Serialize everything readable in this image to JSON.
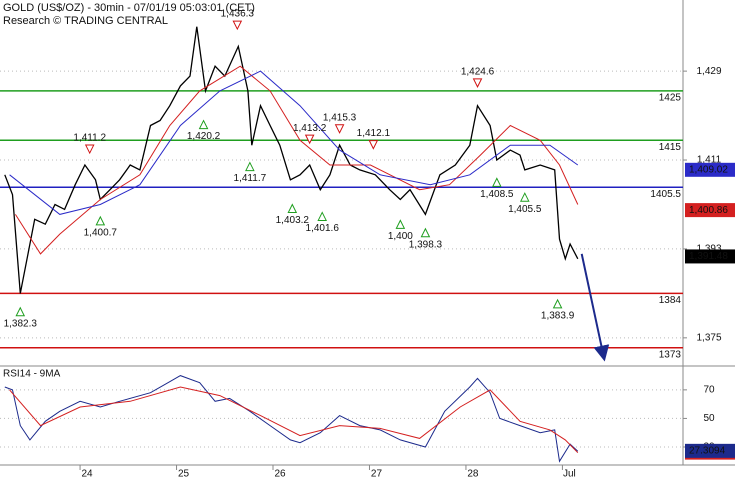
{
  "chart_data": [
    {
      "type": "line",
      "title": "GOLD (US$/OZ) - 30min - 07/01/19 05:03:01 (CET)",
      "subtitle": "Research © TRADING CENTRAL",
      "xlim": [
        23.17,
        30.25
      ],
      "ylim": [
        1369.5,
        1443.4
      ],
      "yticks": [
        {
          "value": 1375,
          "label": "1,375"
        },
        {
          "value": 1393,
          "label": "1,393"
        },
        {
          "value": 1411,
          "label": "1,411"
        },
        {
          "value": 1429,
          "label": "1,429"
        }
      ],
      "series": [
        {
          "color": "#000000",
          "width": 1.3,
          "x": [
            23.22,
            23.3,
            23.38,
            23.46,
            23.53,
            23.64,
            23.74,
            23.84,
            23.95,
            24.05,
            24.16,
            24.21,
            24.31,
            24.41,
            24.52,
            24.62,
            24.73,
            24.83,
            24.93,
            25.04,
            25.14,
            25.21,
            25.3,
            25.4,
            25.5,
            25.64,
            25.74,
            25.78,
            25.87,
            25.97,
            26.07,
            26.18,
            26.28,
            26.38,
            26.49,
            26.59,
            26.69,
            26.8,
            26.9,
            27.06,
            27.21,
            27.32,
            27.42,
            27.58,
            27.73,
            27.89,
            28.04,
            28.12,
            28.25,
            28.32,
            28.46,
            28.56,
            28.61,
            28.77,
            28.92,
            28.97,
            29.03,
            29.08,
            29.16
          ],
          "values": [
            1408,
            1404,
            1384,
            1392,
            1399,
            1398,
            1402,
            1401,
            1406,
            1410,
            1407,
            1403,
            1405,
            1407,
            1410,
            1409,
            1418,
            1419,
            1422,
            1426,
            1428,
            1438,
            1425,
            1430,
            1428,
            1434,
            1425,
            1414,
            1422,
            1418,
            1414,
            1407,
            1408,
            1410,
            1405,
            1408,
            1414,
            1410,
            1409,
            1408,
            1405,
            1403,
            1405,
            1400,
            1408,
            1410,
            1414,
            1422,
            1418,
            1411,
            1413,
            1412,
            1409,
            1410,
            1409,
            1395,
            1391,
            1394,
            1391
          ]
        },
        {
          "color": "#d42020",
          "width": 1,
          "x": [
            23.33,
            23.59,
            23.79,
            24.21,
            24.62,
            24.93,
            25.24,
            25.66,
            25.97,
            26.28,
            26.59,
            27.01,
            27.52,
            27.83,
            28.15,
            28.46,
            28.77,
            28.97,
            29.16
          ],
          "values": [
            1400,
            1392,
            1396,
            1403,
            1408,
            1418,
            1425,
            1430,
            1425,
            1415,
            1410,
            1410,
            1405,
            1406,
            1412,
            1418,
            1415,
            1410,
            1402
          ]
        },
        {
          "color": "#2b2bc8",
          "width": 1,
          "x": [
            23.27,
            23.79,
            24.21,
            24.62,
            25.04,
            25.45,
            25.87,
            26.28,
            26.69,
            27.11,
            27.63,
            28.04,
            28.46,
            28.87,
            29.16
          ],
          "values": [
            1408,
            1400,
            1402,
            1406,
            1418,
            1425,
            1429,
            1422,
            1413,
            1408,
            1406,
            1408,
            1414,
            1414,
            1410
          ]
        }
      ],
      "levels": [
        {
          "value": 1425,
          "color": "#1f9e1f"
        },
        {
          "value": 1415,
          "color": "#1f9e1f"
        },
        {
          "value": 1405.5,
          "color": "#2020c0"
        },
        {
          "value": 1384,
          "color": "#d01010"
        },
        {
          "value": 1373,
          "color": "#d01010"
        }
      ],
      "highs": [
        {
          "x": 24.1,
          "value": 1411.2,
          "label": "1,411.2"
        },
        {
          "x": 25.63,
          "value": 1436.3,
          "label": "1,436.3"
        },
        {
          "x": 26.38,
          "value": 1413.2,
          "label": "1,413.2"
        },
        {
          "x": 26.69,
          "value": 1415.3,
          "label": "1,415.3"
        },
        {
          "x": 27.04,
          "value": 1412.1,
          "label": "1,412.1"
        },
        {
          "x": 28.12,
          "value": 1424.6,
          "label": "1,424.6"
        }
      ],
      "lows": [
        {
          "x": 23.38,
          "value": 1382.3,
          "label": "1,382.3"
        },
        {
          "x": 24.21,
          "value": 1400.7,
          "label": "1,400.7"
        },
        {
          "x": 25.28,
          "value": 1420.2,
          "label": "1,420.2"
        },
        {
          "x": 25.76,
          "value": 1411.7,
          "label": "1,411.7"
        },
        {
          "x": 26.2,
          "value": 1403.2,
          "label": "1,403.2"
        },
        {
          "x": 26.51,
          "value": 1401.6,
          "label": "1,401.6"
        },
        {
          "x": 27.32,
          "value": 1400,
          "label": "1,400"
        },
        {
          "x": 27.58,
          "value": 1398.3,
          "label": "1,398.3"
        },
        {
          "x": 28.32,
          "value": 1408.5,
          "label": "1,408.5"
        },
        {
          "x": 28.61,
          "value": 1405.5,
          "label": "1,405.5"
        },
        {
          "x": 28.95,
          "value": 1383.9,
          "label": "1,383.9"
        }
      ],
      "last_labels": [
        {
          "value": 1409.02,
          "label": "1,409.02",
          "color": "#2b2bc8"
        },
        {
          "value": 1400.86,
          "label": "1,400.86",
          "color": "#d42020"
        },
        {
          "value": 1391.48,
          "label": "1,391.48",
          "color": "#000000"
        }
      ],
      "projection": {
        "x": [
          29.2,
          29.43
        ],
        "values": [
          1392,
          1371
        ],
        "color": "#1c2a8c"
      }
    },
    {
      "type": "line",
      "title": "RSI14 - 9MA",
      "xlim": [
        23.17,
        30.25
      ],
      "xticks": [
        24,
        25,
        26,
        27,
        28,
        {
          "value": 29,
          "label": "Jul"
        }
      ],
      "ylim": [
        17.4,
        86
      ],
      "yticks": [
        30,
        50,
        70
      ],
      "series": [
        {
          "color": "#1c2a8c",
          "width": 1,
          "x": [
            23.22,
            23.3,
            23.38,
            23.48,
            23.64,
            23.79,
            24.0,
            24.21,
            24.41,
            24.73,
            25.04,
            25.24,
            25.4,
            25.55,
            25.76,
            25.97,
            26.18,
            26.28,
            26.49,
            26.69,
            26.9,
            27.11,
            27.32,
            27.58,
            27.78,
            28.04,
            28.12,
            28.25,
            28.35,
            28.56,
            28.77,
            28.92,
            28.97,
            29.08,
            29.16
          ],
          "values": [
            72,
            70,
            45,
            35,
            48,
            55,
            62,
            58,
            62,
            68,
            80,
            75,
            62,
            64,
            55,
            45,
            35,
            33,
            40,
            52,
            45,
            42,
            35,
            30,
            55,
            72,
            78,
            68,
            50,
            45,
            40,
            42,
            20,
            32,
            27
          ]
        },
        {
          "color": "#d42020",
          "width": 1,
          "x": [
            23.27,
            23.59,
            24.0,
            24.52,
            25.04,
            25.45,
            25.87,
            26.28,
            26.69,
            27.11,
            27.52,
            27.94,
            28.25,
            28.56,
            28.87,
            29.03,
            29.16
          ],
          "values": [
            70,
            45,
            58,
            62,
            72,
            66,
            52,
            38,
            45,
            43,
            36,
            58,
            70,
            48,
            42,
            35,
            26
          ]
        }
      ],
      "last_labels": [
        {
          "value": 26.0658,
          "label": "26.0658",
          "color": "#d42020"
        },
        {
          "value": 27.3094,
          "label": "27.3094",
          "color": "#1c2a8c"
        }
      ]
    }
  ]
}
